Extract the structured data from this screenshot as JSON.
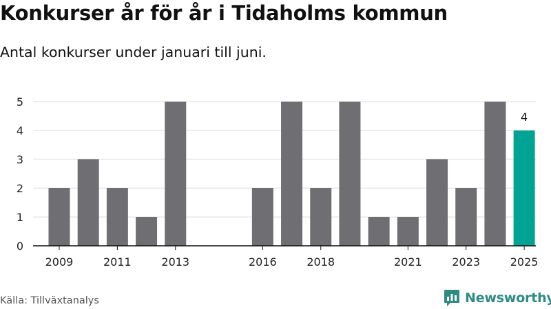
{
  "title": "Konkurser år för år i Tidaholms kommun",
  "subtitle": "Antal konkurser under januari till juni.",
  "source": "Källa: Tillväxtanalys",
  "brand": {
    "name": "Newsworthy",
    "icon": "newsworthy-logo-icon",
    "color": "#2e8b83"
  },
  "colors": {
    "bar": "#6f6e73",
    "highlight": "#00a394",
    "grid": "#dddddd",
    "axis": "#111111"
  },
  "chart_data": {
    "type": "bar",
    "x": [
      2009,
      2010,
      2011,
      2012,
      2013,
      2016,
      2017,
      2018,
      2019,
      2020,
      2021,
      2022,
      2023,
      2024,
      2025
    ],
    "values": [
      2,
      3,
      2,
      1,
      5,
      2,
      5,
      2,
      5,
      1,
      1,
      3,
      2,
      5,
      4
    ],
    "x_tick_labels": [
      "2009",
      "2011",
      "2013",
      "2016",
      "2018",
      "2021",
      "2023",
      "2025"
    ],
    "y_ticks": [
      0,
      1,
      2,
      3,
      4,
      5
    ],
    "ylim": [
      0,
      5
    ],
    "highlight": {
      "x": 2025,
      "label": "4"
    },
    "grid": "horizontal",
    "legend": "none"
  }
}
